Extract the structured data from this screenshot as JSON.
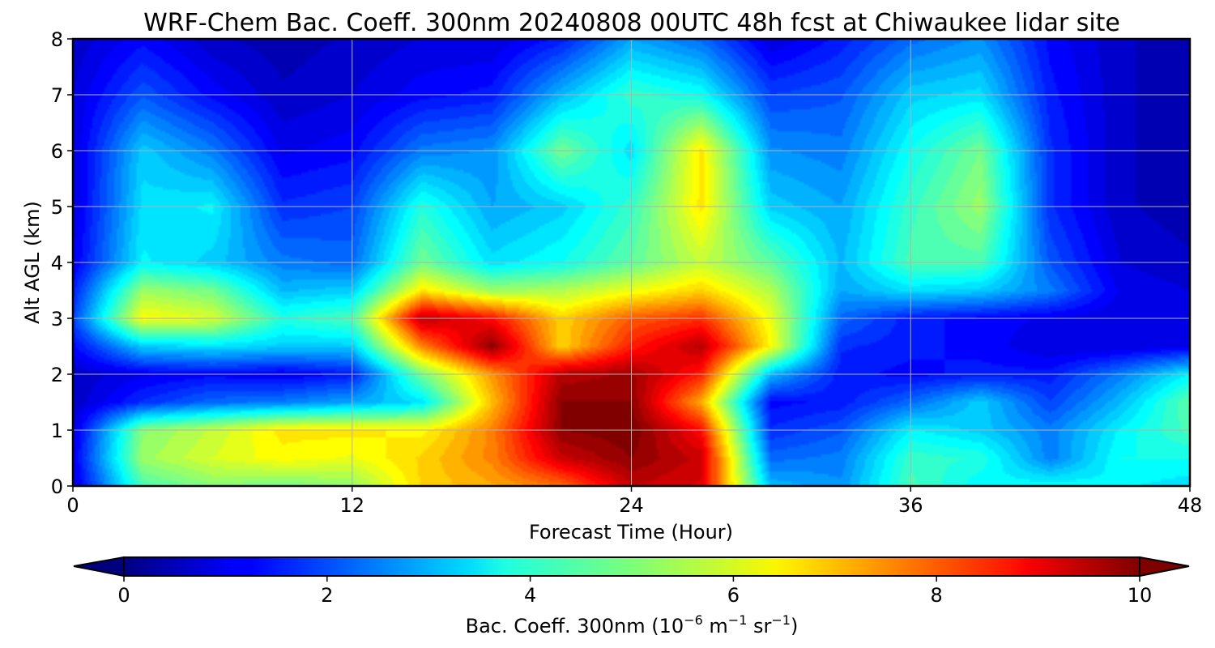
{
  "chart_data": {
    "type": "heatmap",
    "title": "WRF-Chem Bac. Coeff. 300nm  20240808 00UTC 48h fcst at Chiwaukee lidar site",
    "xlabel": "Forecast Time (Hour)",
    "ylabel": "Alt AGL (km)",
    "xlim": [
      0,
      48
    ],
    "ylim": [
      0,
      8
    ],
    "xticks": [
      0,
      12,
      24,
      36,
      48
    ],
    "yticks": [
      0,
      1,
      2,
      3,
      4,
      5,
      6,
      7,
      8
    ],
    "grid": true,
    "colorbar": {
      "label_main": "Bac. Coeff. 300nm  (10",
      "label_exp1": "−6",
      "label_mid": " m",
      "label_exp2": "−1",
      "label_end": " sr",
      "label_exp3": "−1",
      "label_close": ")",
      "colormap": "jet",
      "range": [
        0,
        10
      ],
      "ticks": [
        0,
        2,
        4,
        6,
        8,
        10
      ],
      "extend": "both",
      "orientation": "horizontal"
    },
    "x": [
      0,
      3,
      6,
      9,
      12,
      15,
      18,
      21,
      24,
      27,
      30,
      33,
      36,
      39,
      42,
      45,
      48
    ],
    "y": [
      0,
      0.5,
      1,
      1.5,
      2,
      2.5,
      3,
      3.5,
      4,
      5,
      6,
      7,
      8
    ],
    "z": [
      [
        1.0,
        4.6,
        5.2,
        5.0,
        5.3,
        6.8,
        7.2,
        7.8,
        9.5,
        9.2,
        3.2,
        2.8,
        4.6,
        3.8,
        4.0,
        3.8,
        3.6
      ],
      [
        1.2,
        5.4,
        6.0,
        6.4,
        6.2,
        6.8,
        7.6,
        9.4,
        10.0,
        9.4,
        2.4,
        2.6,
        4.4,
        4.2,
        2.6,
        4.0,
        4.0
      ],
      [
        1.0,
        5.2,
        5.8,
        6.6,
        6.6,
        6.4,
        7.6,
        10.0,
        10.2,
        8.8,
        1.8,
        2.2,
        3.8,
        3.4,
        2.6,
        3.8,
        4.6
      ],
      [
        0.8,
        1.8,
        2.4,
        2.6,
        3.0,
        3.6,
        7.0,
        10.0,
        10.0,
        7.2,
        1.4,
        1.6,
        2.4,
        3.4,
        2.0,
        3.2,
        4.8
      ],
      [
        0.8,
        1.2,
        1.4,
        1.2,
        1.6,
        5.0,
        7.4,
        9.6,
        9.8,
        8.6,
        3.2,
        1.6,
        1.4,
        1.6,
        1.6,
        2.6,
        3.8
      ],
      [
        1.4,
        3.4,
        3.6,
        3.4,
        3.4,
        7.6,
        10.0,
        6.8,
        8.6,
        9.6,
        6.4,
        1.8,
        1.6,
        1.4,
        1.0,
        1.0,
        1.2
      ],
      [
        2.0,
        6.4,
        6.0,
        4.2,
        4.6,
        9.6,
        8.8,
        6.8,
        8.0,
        8.4,
        6.2,
        2.4,
        1.6,
        1.4,
        1.2,
        1.0,
        1.0
      ],
      [
        1.6,
        5.4,
        5.0,
        3.2,
        3.4,
        6.6,
        5.4,
        5.6,
        6.2,
        6.8,
        5.6,
        3.0,
        3.6,
        3.4,
        2.6,
        1.2,
        1.0
      ],
      [
        1.2,
        3.8,
        3.4,
        2.6,
        2.4,
        5.0,
        3.6,
        4.0,
        4.8,
        5.8,
        4.8,
        3.2,
        4.6,
        4.6,
        2.2,
        1.0,
        0.8
      ],
      [
        1.0,
        3.6,
        3.8,
        1.8,
        2.0,
        4.2,
        3.0,
        3.4,
        4.4,
        6.6,
        3.4,
        3.0,
        4.4,
        5.4,
        1.8,
        0.8,
        0.6
      ],
      [
        1.0,
        3.4,
        2.6,
        1.2,
        1.4,
        2.6,
        2.8,
        5.0,
        3.6,
        6.6,
        2.8,
        2.6,
        4.0,
        5.0,
        1.8,
        0.8,
        0.6
      ],
      [
        1.0,
        2.2,
        1.4,
        0.8,
        1.0,
        1.4,
        1.6,
        3.2,
        4.4,
        4.0,
        2.0,
        2.2,
        3.4,
        3.6,
        1.6,
        0.8,
        0.6
      ],
      [
        0.8,
        1.4,
        0.8,
        0.6,
        0.8,
        1.0,
        1.0,
        1.6,
        3.0,
        2.4,
        1.0,
        1.6,
        2.4,
        2.8,
        1.4,
        0.8,
        0.6
      ]
    ]
  }
}
